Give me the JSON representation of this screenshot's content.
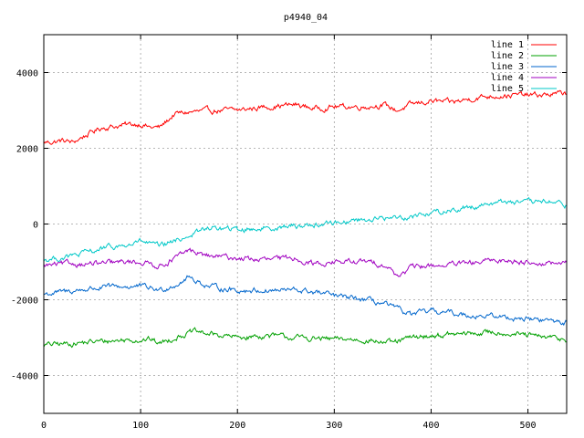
{
  "chart_data": {
    "type": "line",
    "title": "p4940_04",
    "xlabel": "",
    "ylabel": "",
    "xlim": [
      0,
      540
    ],
    "ylim": [
      -5000,
      5000
    ],
    "xticks": [
      0,
      100,
      200,
      300,
      400,
      500
    ],
    "yticks": [
      -4000,
      -2000,
      0,
      2000,
      4000
    ],
    "grid": true,
    "legend_position": "top-right",
    "series": [
      {
        "name": "line 1",
        "color": "#ff0000",
        "x": [
          0,
          20,
          30,
          40,
          60,
          80,
          100,
          110,
          120,
          135,
          150,
          180,
          200,
          230,
          260,
          280,
          300,
          330,
          350,
          365,
          380,
          400,
          420,
          450,
          470,
          490,
          510,
          540
        ],
        "y": [
          2150,
          2200,
          2150,
          2300,
          2550,
          2600,
          2650,
          2550,
          2550,
          2900,
          2950,
          3000,
          3000,
          3100,
          3150,
          3050,
          3100,
          3100,
          3150,
          3000,
          3150,
          3250,
          3200,
          3350,
          3400,
          3400,
          3400,
          3450
        ]
      },
      {
        "name": "line 2",
        "color": "#00a000",
        "x": [
          0,
          30,
          60,
          90,
          110,
          120,
          140,
          155,
          170,
          200,
          230,
          260,
          300,
          330,
          360,
          380,
          400,
          440,
          470,
          500,
          520,
          540
        ],
        "y": [
          -3200,
          -3150,
          -3100,
          -3050,
          -3050,
          -3150,
          -2950,
          -2850,
          -2900,
          -3000,
          -2950,
          -3000,
          -3050,
          -3050,
          -3150,
          -3000,
          -2950,
          -2900,
          -2850,
          -2950,
          -3000,
          -3050
        ]
      },
      {
        "name": "line 3",
        "color": "#0066cc",
        "x": [
          0,
          20,
          50,
          80,
          100,
          120,
          140,
          150,
          170,
          200,
          230,
          260,
          280,
          300,
          330,
          350,
          370,
          380,
          400,
          440,
          470,
          500,
          520,
          540
        ],
        "y": [
          -1850,
          -1800,
          -1700,
          -1650,
          -1650,
          -1750,
          -1550,
          -1400,
          -1650,
          -1750,
          -1750,
          -1750,
          -1800,
          -1900,
          -2000,
          -2100,
          -2300,
          -2400,
          -2300,
          -2400,
          -2450,
          -2500,
          -2550,
          -2600
        ]
      },
      {
        "name": "line 4",
        "color": "#a000c0",
        "x": [
          0,
          30,
          60,
          90,
          100,
          120,
          140,
          150,
          170,
          200,
          230,
          260,
          280,
          300,
          330,
          350,
          365,
          370,
          380,
          400,
          440,
          470,
          500,
          520,
          540
        ],
        "y": [
          -1100,
          -1050,
          -1050,
          -1000,
          -1000,
          -1100,
          -850,
          -700,
          -850,
          -900,
          -950,
          -900,
          -1050,
          -1000,
          -1000,
          -1050,
          -1350,
          -1300,
          -1150,
          -1100,
          -1050,
          -950,
          -1000,
          -1050,
          -1050
        ]
      },
      {
        "name": "line 5",
        "color": "#00c8c8",
        "x": [
          0,
          30,
          60,
          90,
          100,
          120,
          130,
          150,
          170,
          200,
          230,
          260,
          290,
          320,
          350,
          380,
          400,
          430,
          460,
          480,
          500,
          520,
          540
        ],
        "y": [
          -950,
          -850,
          -650,
          -550,
          -450,
          -600,
          -500,
          -300,
          -100,
          -150,
          -100,
          -50,
          0,
          100,
          150,
          200,
          300,
          400,
          550,
          600,
          550,
          600,
          500
        ]
      }
    ]
  }
}
